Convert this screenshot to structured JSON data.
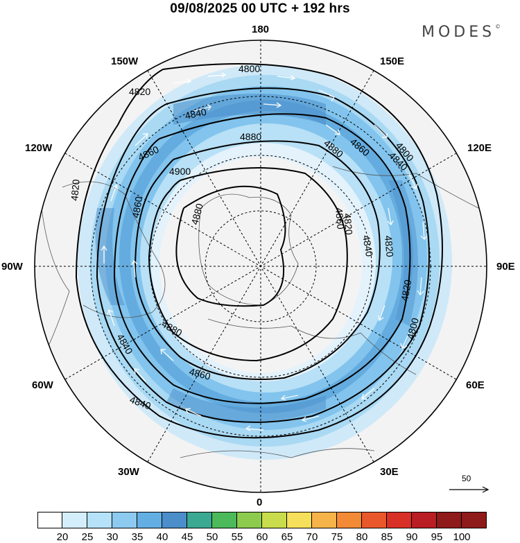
{
  "title": "09/08/2025  00 UTC  + 192 hrs",
  "brand": "MODES",
  "brand_mark": "©",
  "longitude_labels": {
    "top": "180",
    "bottom": "0",
    "left": "90W",
    "right": "90E",
    "upper_left_1": "150W",
    "upper_left_2": "120W",
    "lower_left_1": "60W",
    "lower_left_2": "30W",
    "upper_right_1": "150E",
    "upper_right_2": "120E",
    "lower_right_1": "60E",
    "lower_right_2": "30E"
  },
  "contour_labels": [
    "4800",
    "4820",
    "4840",
    "4860",
    "4880",
    "4900",
    "4880",
    "4860",
    "4840",
    "4820",
    "4800",
    "4860",
    "4840",
    "4820",
    "4880",
    "4860",
    "4840",
    "4820",
    "4800",
    "4880",
    "4860",
    "4840",
    "4820"
  ],
  "reference_vector_label": "50",
  "colorbar": {
    "ticks": [
      "20",
      "25",
      "30",
      "35",
      "40",
      "45",
      "50",
      "55",
      "60",
      "65",
      "70",
      "75",
      "80",
      "85",
      "90",
      "95",
      "100"
    ],
    "colors": [
      "#ffffff",
      "#d4eefb",
      "#b5e2f8",
      "#8ccaf0",
      "#63aee3",
      "#4b8ec9",
      "#3ba891",
      "#4cba5a",
      "#8ccb4e",
      "#c9dc4b",
      "#f6df5a",
      "#f6b34a",
      "#f28a36",
      "#e9582b",
      "#d83027",
      "#b81e23",
      "#8e1a1a"
    ]
  }
}
